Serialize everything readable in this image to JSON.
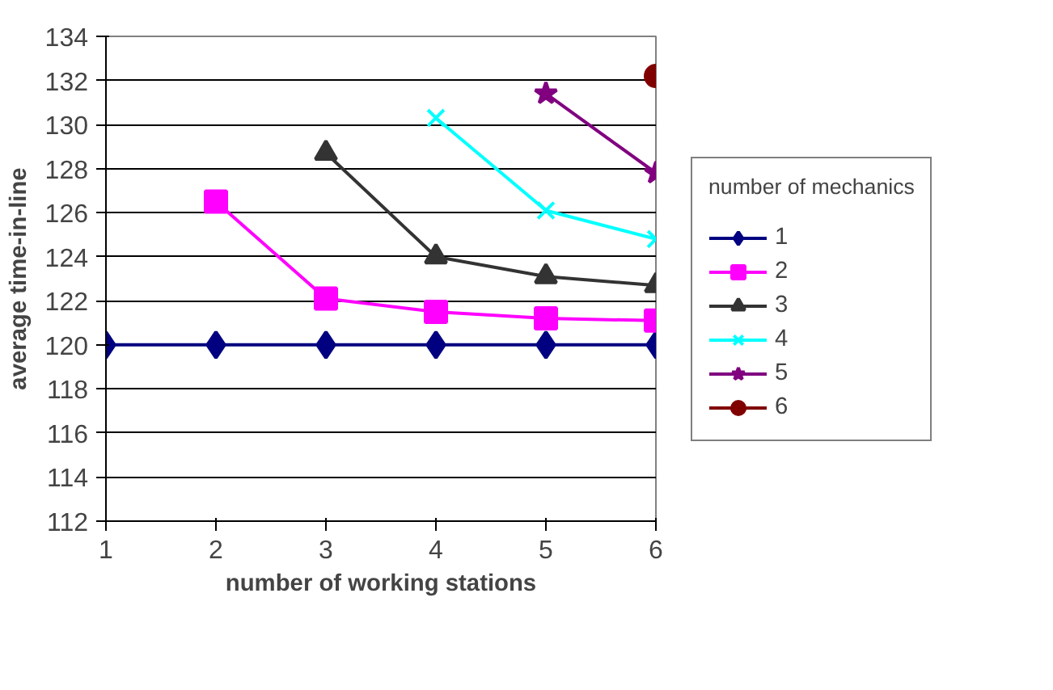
{
  "chart_data": {
    "type": "line",
    "xlabel": "number of working stations",
    "ylabel": "average time-in-line",
    "legend_title": "number of mechanics",
    "xlim": [
      1,
      6
    ],
    "xticks": [
      1,
      2,
      3,
      4,
      5,
      6
    ],
    "ylim": [
      112,
      134
    ],
    "yticks": [
      112,
      114,
      116,
      118,
      120,
      122,
      124,
      126,
      128,
      130,
      132,
      134
    ],
    "grid": "y",
    "legend": "right",
    "series": [
      {
        "name": "1",
        "color": "#000080",
        "marker": "diamond",
        "x": [
          1,
          2,
          3,
          4,
          5,
          6
        ],
        "values": [
          120,
          120,
          120,
          120,
          120,
          120
        ]
      },
      {
        "name": "2",
        "color": "#ff00ff",
        "marker": "square",
        "x": [
          2,
          3,
          4,
          5,
          6
        ],
        "values": [
          126.5,
          122.1,
          121.5,
          121.2,
          121.1
        ]
      },
      {
        "name": "3",
        "color": "#333333",
        "marker": "triangle",
        "x": [
          3,
          4,
          5,
          6
        ],
        "values": [
          128.7,
          124.0,
          123.1,
          122.7
        ]
      },
      {
        "name": "4",
        "color": "#00ffff",
        "marker": "cross",
        "x": [
          4,
          5,
          6
        ],
        "values": [
          130.3,
          126.1,
          124.8
        ]
      },
      {
        "name": "5",
        "color": "#800080",
        "marker": "star",
        "x": [
          5,
          6
        ],
        "values": [
          131.4,
          127.8
        ]
      },
      {
        "name": "6",
        "color": "#800000",
        "marker": "circle",
        "x": [
          6
        ],
        "values": [
          132.2
        ]
      }
    ]
  }
}
